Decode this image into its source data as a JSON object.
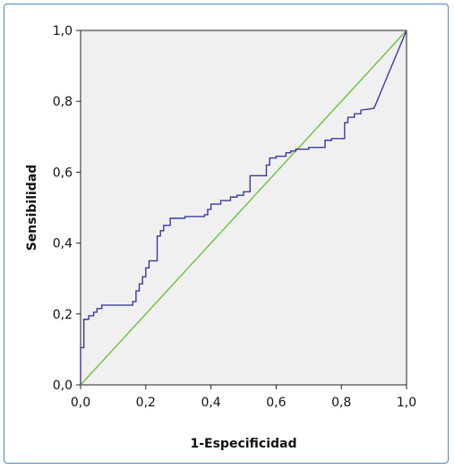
{
  "chart_data": {
    "type": "line",
    "xlabel": "1-Especificidad",
    "ylabel": "Sensibilidad",
    "xlim": [
      0,
      1
    ],
    "ylim": [
      0,
      1
    ],
    "x_ticks": [
      "0,0",
      "0,2",
      "0,4",
      "0,6",
      "0,8",
      "1,0"
    ],
    "y_ticks": [
      "0,0",
      "0,2",
      "0,4",
      "0,6",
      "0,8",
      "1,0"
    ],
    "grid": false,
    "colors": {
      "plot_background": "#f0f0f0",
      "curve": "#3a3aa0",
      "reference": "#6dc23a",
      "frame": "#4a88b8"
    },
    "series": [
      {
        "role": "roc-curve",
        "x": [
          0,
          0,
          0.01,
          0.01,
          0.025,
          0.025,
          0.04,
          0.04,
          0.05,
          0.05,
          0.065,
          0.065,
          0.16,
          0.16,
          0.17,
          0.17,
          0.18,
          0.18,
          0.19,
          0.19,
          0.2,
          0.2,
          0.21,
          0.21,
          0.235,
          0.235,
          0.245,
          0.245,
          0.255,
          0.255,
          0.275,
          0.275,
          0.32,
          0.32,
          0.38,
          0.38,
          0.39,
          0.39,
          0.4,
          0.4,
          0.43,
          0.43,
          0.46,
          0.46,
          0.48,
          0.48,
          0.5,
          0.5,
          0.52,
          0.52,
          0.57,
          0.57,
          0.58,
          0.58,
          0.6,
          0.6,
          0.63,
          0.63,
          0.645,
          0.645,
          0.66,
          0.66,
          0.7,
          0.7,
          0.75,
          0.75,
          0.77,
          0.77,
          0.81,
          0.81,
          0.82,
          0.82,
          0.84,
          0.84,
          0.86,
          0.86,
          0.9,
          1.0
        ],
        "y": [
          0,
          0.105,
          0.105,
          0.185,
          0.185,
          0.195,
          0.195,
          0.205,
          0.205,
          0.215,
          0.215,
          0.225,
          0.225,
          0.235,
          0.235,
          0.265,
          0.265,
          0.285,
          0.285,
          0.305,
          0.305,
          0.33,
          0.33,
          0.35,
          0.35,
          0.42,
          0.42,
          0.435,
          0.435,
          0.45,
          0.45,
          0.47,
          0.47,
          0.475,
          0.475,
          0.48,
          0.48,
          0.495,
          0.495,
          0.51,
          0.51,
          0.52,
          0.52,
          0.53,
          0.53,
          0.535,
          0.535,
          0.545,
          0.545,
          0.59,
          0.59,
          0.62,
          0.62,
          0.64,
          0.64,
          0.645,
          0.645,
          0.655,
          0.655,
          0.66,
          0.66,
          0.665,
          0.665,
          0.67,
          0.67,
          0.69,
          0.69,
          0.695,
          0.695,
          0.74,
          0.74,
          0.755,
          0.755,
          0.765,
          0.765,
          0.775,
          0.78,
          1.0
        ]
      },
      {
        "role": "reference-line",
        "x": [
          0,
          1
        ],
        "y": [
          0,
          1
        ]
      }
    ]
  }
}
